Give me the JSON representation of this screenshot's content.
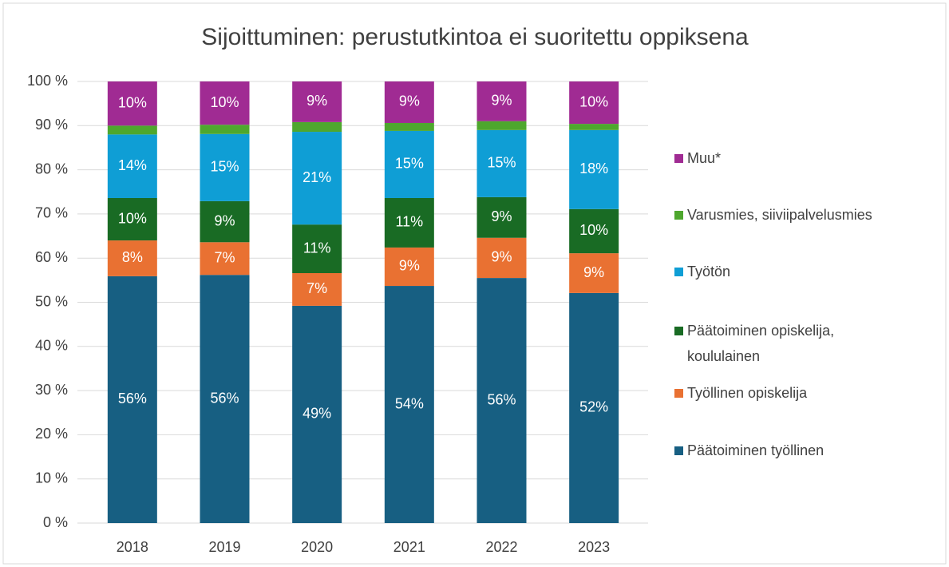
{
  "chart_data": {
    "type": "stacked_bar",
    "title": "Sijoittuminen: perustutkintoa ei suoritettu oppiksena",
    "categories": [
      "2018",
      "2019",
      "2020",
      "2021",
      "2022",
      "2023"
    ],
    "ylim": [
      0,
      100
    ],
    "yticks": [
      {
        "value": 0,
        "label": "0 %"
      },
      {
        "value": 10,
        "label": "10 %"
      },
      {
        "value": 20,
        "label": "20 %"
      },
      {
        "value": 30,
        "label": "30 %"
      },
      {
        "value": 40,
        "label": "40 %"
      },
      {
        "value": 50,
        "label": "50 %"
      },
      {
        "value": 60,
        "label": "60 %"
      },
      {
        "value": 70,
        "label": "70 %"
      },
      {
        "value": 80,
        "label": "80 %"
      },
      {
        "value": 90,
        "label": "90 %"
      },
      {
        "value": 100,
        "label": "100 %"
      }
    ],
    "grid": true,
    "legend": "right",
    "series": [
      {
        "name": "Päätoiminen työllinen",
        "color": "#175f82",
        "values": [
          55.9,
          56.2,
          49.2,
          53.7,
          55.5,
          52.1
        ],
        "value_labels": [
          "56%",
          "56%",
          "49%",
          "54%",
          "56%",
          "52%"
        ]
      },
      {
        "name": "Työllinen opiskelija",
        "color": "#e97132",
        "values": [
          8.1,
          7.4,
          7.4,
          8.7,
          9.1,
          9.0
        ],
        "value_labels": [
          "8%",
          "7%",
          "7%",
          "9%",
          "9%",
          "9%"
        ]
      },
      {
        "name": "Päätoiminen opiskelija, koululainen",
        "color": "#196b24",
        "values": [
          9.6,
          9.3,
          11.0,
          11.2,
          9.2,
          10.0
        ],
        "value_labels": [
          "10%",
          "9%",
          "11%",
          "11%",
          "9%",
          "10%"
        ]
      },
      {
        "name": "Työtön",
        "color": "#0f9ed5",
        "values": [
          14.4,
          15.2,
          21.0,
          15.2,
          15.2,
          17.9
        ],
        "value_labels": [
          "14%",
          "15%",
          "21%",
          "15%",
          "15%",
          "18%"
        ]
      },
      {
        "name": "Varusmies, siiviipalvelusmies",
        "color": "#4ea72e",
        "values": [
          2.0,
          2.1,
          2.2,
          1.8,
          2.0,
          1.4
        ]
      },
      {
        "name": "Muu*",
        "color": "#a02b93",
        "values": [
          10.0,
          9.8,
          9.2,
          9.4,
          9.0,
          9.6
        ],
        "value_labels": [
          "10%",
          "10%",
          "9%",
          "9%",
          "9%",
          "10%"
        ]
      }
    ]
  }
}
